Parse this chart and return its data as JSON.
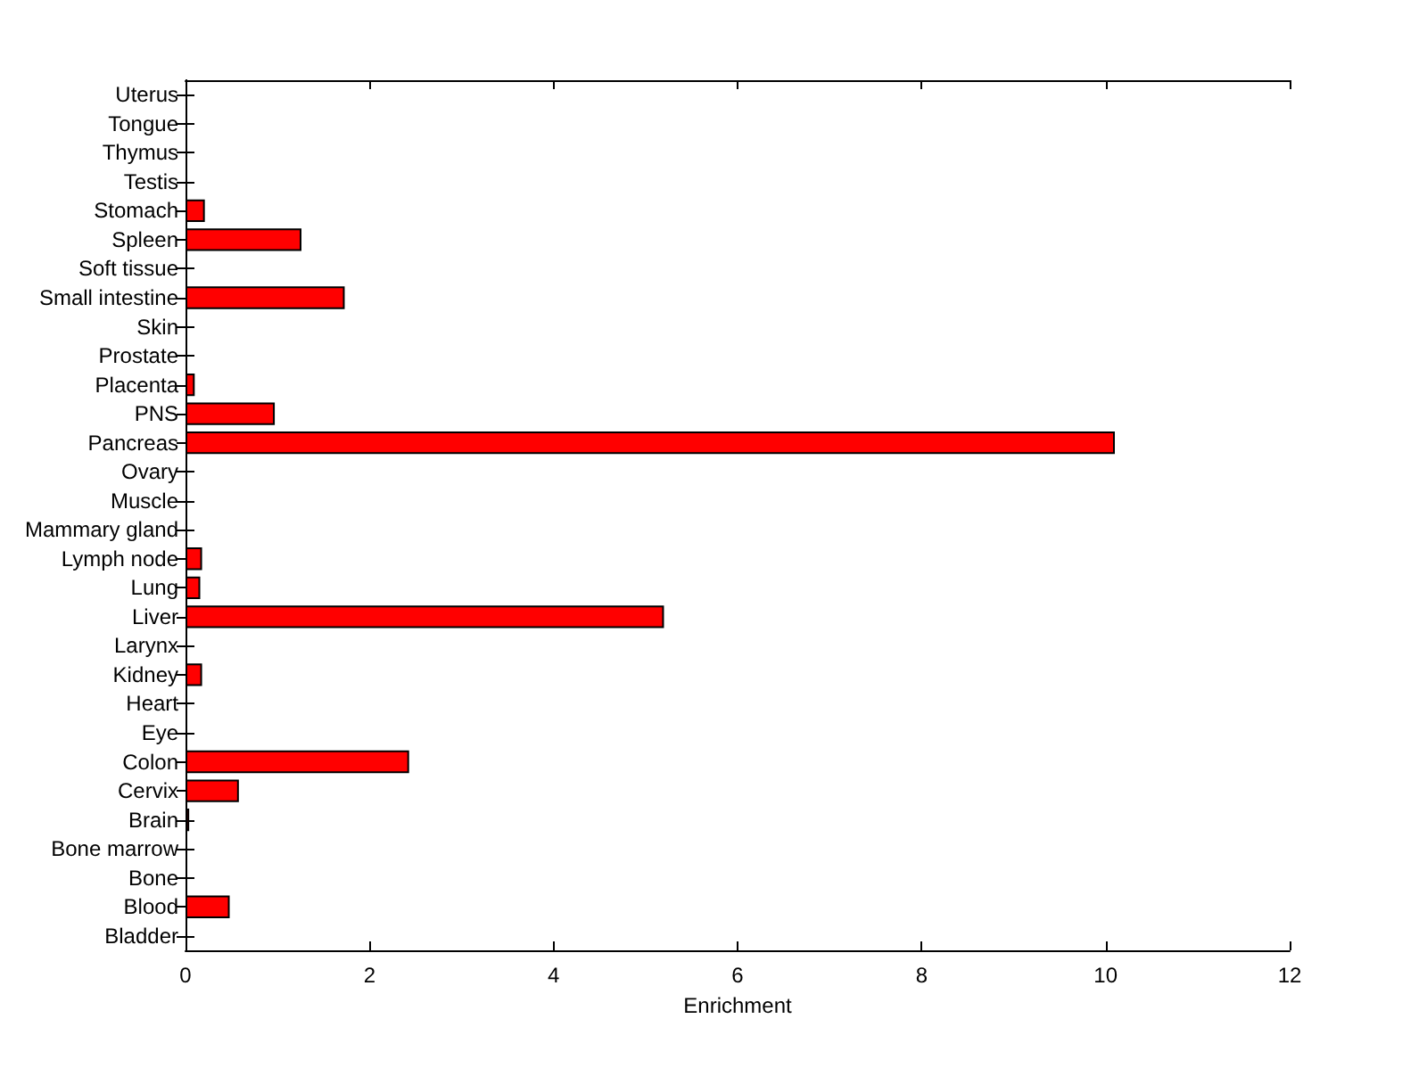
{
  "chart_data": {
    "type": "bar",
    "orientation": "horizontal",
    "xlabel": "Enrichment",
    "color": "#ff0000",
    "categories": [
      "Uterus",
      "Tongue",
      "Thymus",
      "Testis",
      "Stomach",
      "Spleen",
      "Soft tissue",
      "Small intestine",
      "Skin",
      "Prostate",
      "Placenta",
      "PNS",
      "Pancreas",
      "Ovary",
      "Muscle",
      "Mammary gland",
      "Lymph node",
      "Lung",
      "Liver",
      "Larynx",
      "Kidney",
      "Heart",
      "Eye",
      "Colon",
      "Cervix",
      "Brain",
      "Bone marrow",
      "Bone",
      "Blood",
      "Bladder"
    ],
    "values": [
      0,
      0,
      0,
      0,
      0.21,
      1.26,
      0,
      1.73,
      0,
      0,
      0.1,
      0.97,
      10.1,
      0,
      0,
      0,
      0.18,
      0.16,
      5.2,
      0,
      0.18,
      0,
      0,
      2.43,
      0.58,
      0.04,
      0,
      0,
      0.48,
      0
    ],
    "xlim": [
      0,
      12
    ],
    "xticks": [
      0,
      2,
      4,
      6,
      8,
      10,
      12
    ]
  }
}
